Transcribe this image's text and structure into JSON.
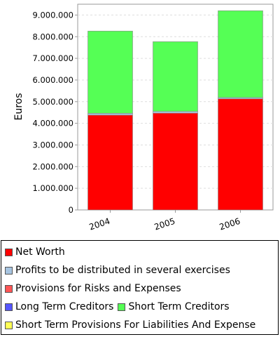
{
  "chart_data": {
    "type": "bar",
    "stacked": true,
    "ylabel": "Euros",
    "xlabel": "",
    "categories": [
      "2004",
      "2005",
      "2006"
    ],
    "ylim": [
      0,
      9500000
    ],
    "yticks": [
      0,
      1000000,
      2000000,
      3000000,
      4000000,
      5000000,
      6000000,
      7000000,
      8000000,
      9000000
    ],
    "ytick_labels": [
      "0",
      "1.000.000",
      "2.000.000",
      "3.000.000",
      "4.000.000",
      "5.000.000",
      "6.000.000",
      "7.000.000",
      "8.000.000",
      "9.000.000"
    ],
    "grid": true,
    "legend_position": "bottom",
    "series": [
      {
        "name": "Net Worth",
        "color": "#ff0000",
        "values": [
          4380000,
          4470000,
          5130000
        ]
      },
      {
        "name": "Profits to be distributed in several exercises",
        "color": "#a7c4e0",
        "values": [
          80000,
          80000,
          60000
        ]
      },
      {
        "name": "Provisions for Risks and Expenses",
        "color": "#ff5555",
        "values": [
          0,
          0,
          0
        ]
      },
      {
        "name": "Long Term Creditors",
        "color": "#5555ff",
        "values": [
          0,
          0,
          0
        ]
      },
      {
        "name": "Short Term Creditors",
        "color": "#55ff55",
        "values": [
          3800000,
          3220000,
          4010000
        ]
      },
      {
        "name": "Short Term Provisions For Liabilities And Expense",
        "color": "#ffff55",
        "values": [
          0,
          0,
          0
        ]
      }
    ]
  }
}
